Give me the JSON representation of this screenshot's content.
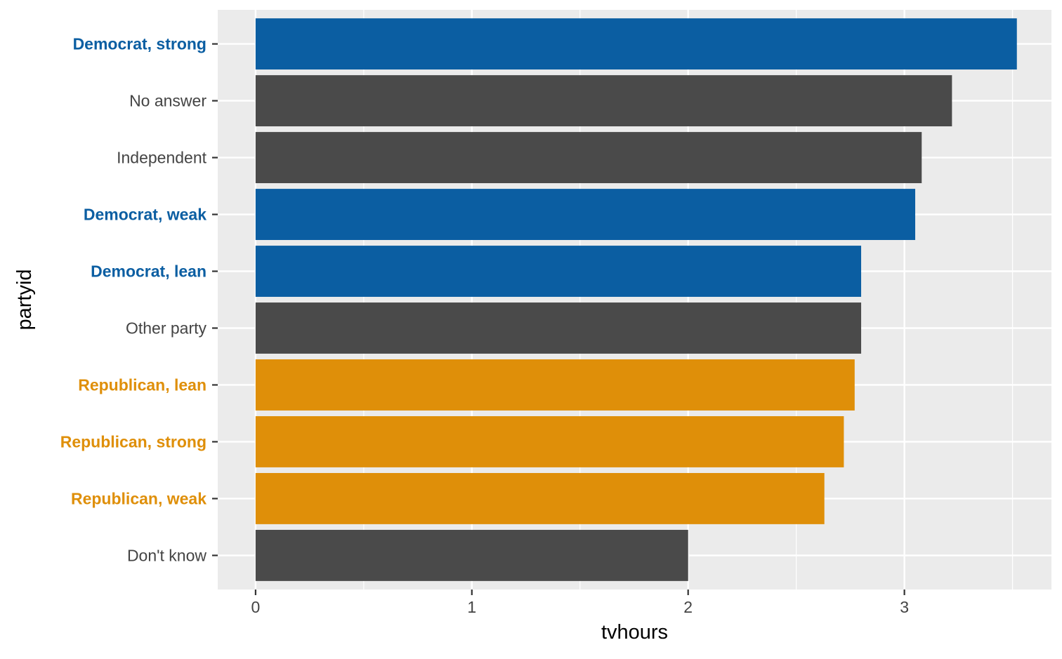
{
  "chart_data": {
    "type": "bar",
    "orientation": "horizontal",
    "xlabel": "tvhours",
    "ylabel": "partyid",
    "xlim": [
      -0.175,
      3.68
    ],
    "xticks": [
      0,
      1,
      2,
      3
    ],
    "grid": true,
    "legend": "none",
    "categories": [
      "Democrat, strong",
      "No answer",
      "Independent",
      "Democrat, weak",
      "Democrat, lean",
      "Other party",
      "Republican, lean",
      "Republican, strong",
      "Republican, weak",
      "Don't know"
    ],
    "values": [
      3.52,
      3.22,
      3.08,
      3.05,
      2.8,
      2.8,
      2.77,
      2.72,
      2.63,
      2.0
    ],
    "groups": [
      "dem",
      "other",
      "other",
      "dem",
      "dem",
      "other",
      "rep",
      "rep",
      "rep",
      "other"
    ],
    "colors": {
      "dem": "#0B5EA2",
      "rep": "#DF8F09",
      "other": "#4A4A4A",
      "panel": "#EBEBEB",
      "grid": "#FFFFFF",
      "text": "#444444"
    }
  }
}
